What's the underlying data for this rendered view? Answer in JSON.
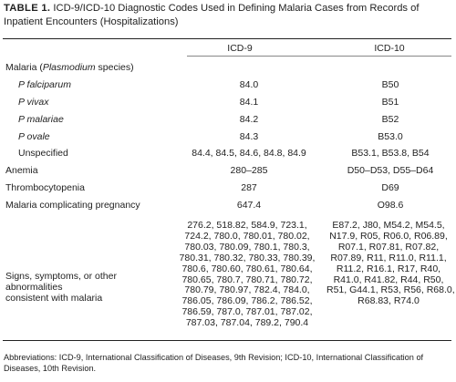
{
  "table": {
    "label": "TABLE 1.",
    "title": "ICD-9/ICD-10 Diagnostic Codes Used in Defining Malaria Cases from Records of Inpatient Encounters (Hospitalizations)",
    "col_icd9": "ICD-9",
    "col_icd10": "ICD-10",
    "rows": [
      {
        "label_pre": "Malaria (",
        "label_em": "Plasmodium",
        "label_post": " species)",
        "icd9": "",
        "icd10": ""
      },
      {
        "label_em": "P falciparum",
        "icd9": "84.0",
        "icd10": "B50"
      },
      {
        "label_em": "P vivax",
        "icd9": "84.1",
        "icd10": "B51"
      },
      {
        "label_em": "P malariae",
        "icd9": "84.2",
        "icd10": "B52"
      },
      {
        "label_em": "P ovale",
        "icd9": "84.3",
        "icd10": "B53.0"
      },
      {
        "label": "Unspecified",
        "icd9": "84.4, 84.5, 84.6, 84.8, 84.9",
        "icd10": "B53.1, B53.8, B54"
      },
      {
        "label": "Anemia",
        "icd9": "280–285",
        "icd10": "D50–D53, D55–D64"
      },
      {
        "label": "Thrombocytopenia",
        "icd9": "287",
        "icd10": "D69"
      },
      {
        "label": "Malaria complicating pregnancy",
        "icd9": "647.4",
        "icd10": "O98.6"
      }
    ],
    "signs": {
      "label_lines": [
        "Signs, symptoms, or other",
        "abnormalities",
        "consistent with malaria"
      ],
      "icd9_lines": [
        "276.2, 518.82, 584.9, 723.1,",
        "724.2, 780.0, 780.01, 780.02,",
        "780.03, 780.09, 780.1, 780.3,",
        "780.31, 780.32, 780.33, 780.39,",
        "780.6, 780.60, 780.61, 780.64,",
        "780.65, 780.7, 780.71, 780.72,",
        "780.79, 780.97, 782.4, 784.0,",
        "786.05, 786.09, 786.2, 786.52,",
        "786.59, 787.0, 787.01, 787.02,",
        "787.03, 787.04, 789.2, 790.4"
      ],
      "icd10_lines": [
        "E87.2, J80, M54.2, M54.5,",
        "N17.9, R05, R06.0, R06.89,",
        "R07.1, R07.81, R07.82,",
        "R07.89, R11, R11.0, R11.1,",
        "R11.2, R16.1, R17, R40,",
        "R41.0, R41.82, R44, R50,",
        "R51, G44.1, R53, R56, R68.0,",
        "R68.83, R74.0"
      ]
    },
    "footnote": "Abbreviations: ICD-9, International Classification of Diseases, 9th Revision; ICD-10, International Classification of Diseases, 10th Revision."
  }
}
